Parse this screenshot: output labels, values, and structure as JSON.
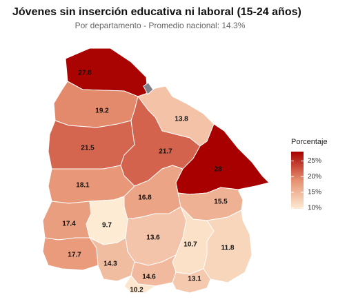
{
  "map": {
    "title": "Jóvenes sin inserción educativa ni laboral (15-24 años)",
    "subtitle": "Por departamento - Promedio nacional: 14.3%",
    "values": [
      27.8,
      19.2,
      13.8,
      21.5,
      21.7,
      28,
      18.1,
      16.8,
      15.5,
      17.4,
      9.7,
      13.6,
      10.7,
      11.8,
      17.7,
      14.3,
      14.6,
      10.2,
      13.1
    ],
    "legend": {
      "title": "Porcentaje",
      "range": [
        9.7,
        28
      ],
      "colors": [
        "#fdebd3",
        "#e69070",
        "#a80000"
      ],
      "ticks": [
        {
          "value": 25,
          "label": "25%"
        },
        {
          "value": 20,
          "label": "20%"
        },
        {
          "value": 15,
          "label": "15%"
        },
        {
          "value": 10,
          "label": "10%"
        }
      ]
    }
  }
}
